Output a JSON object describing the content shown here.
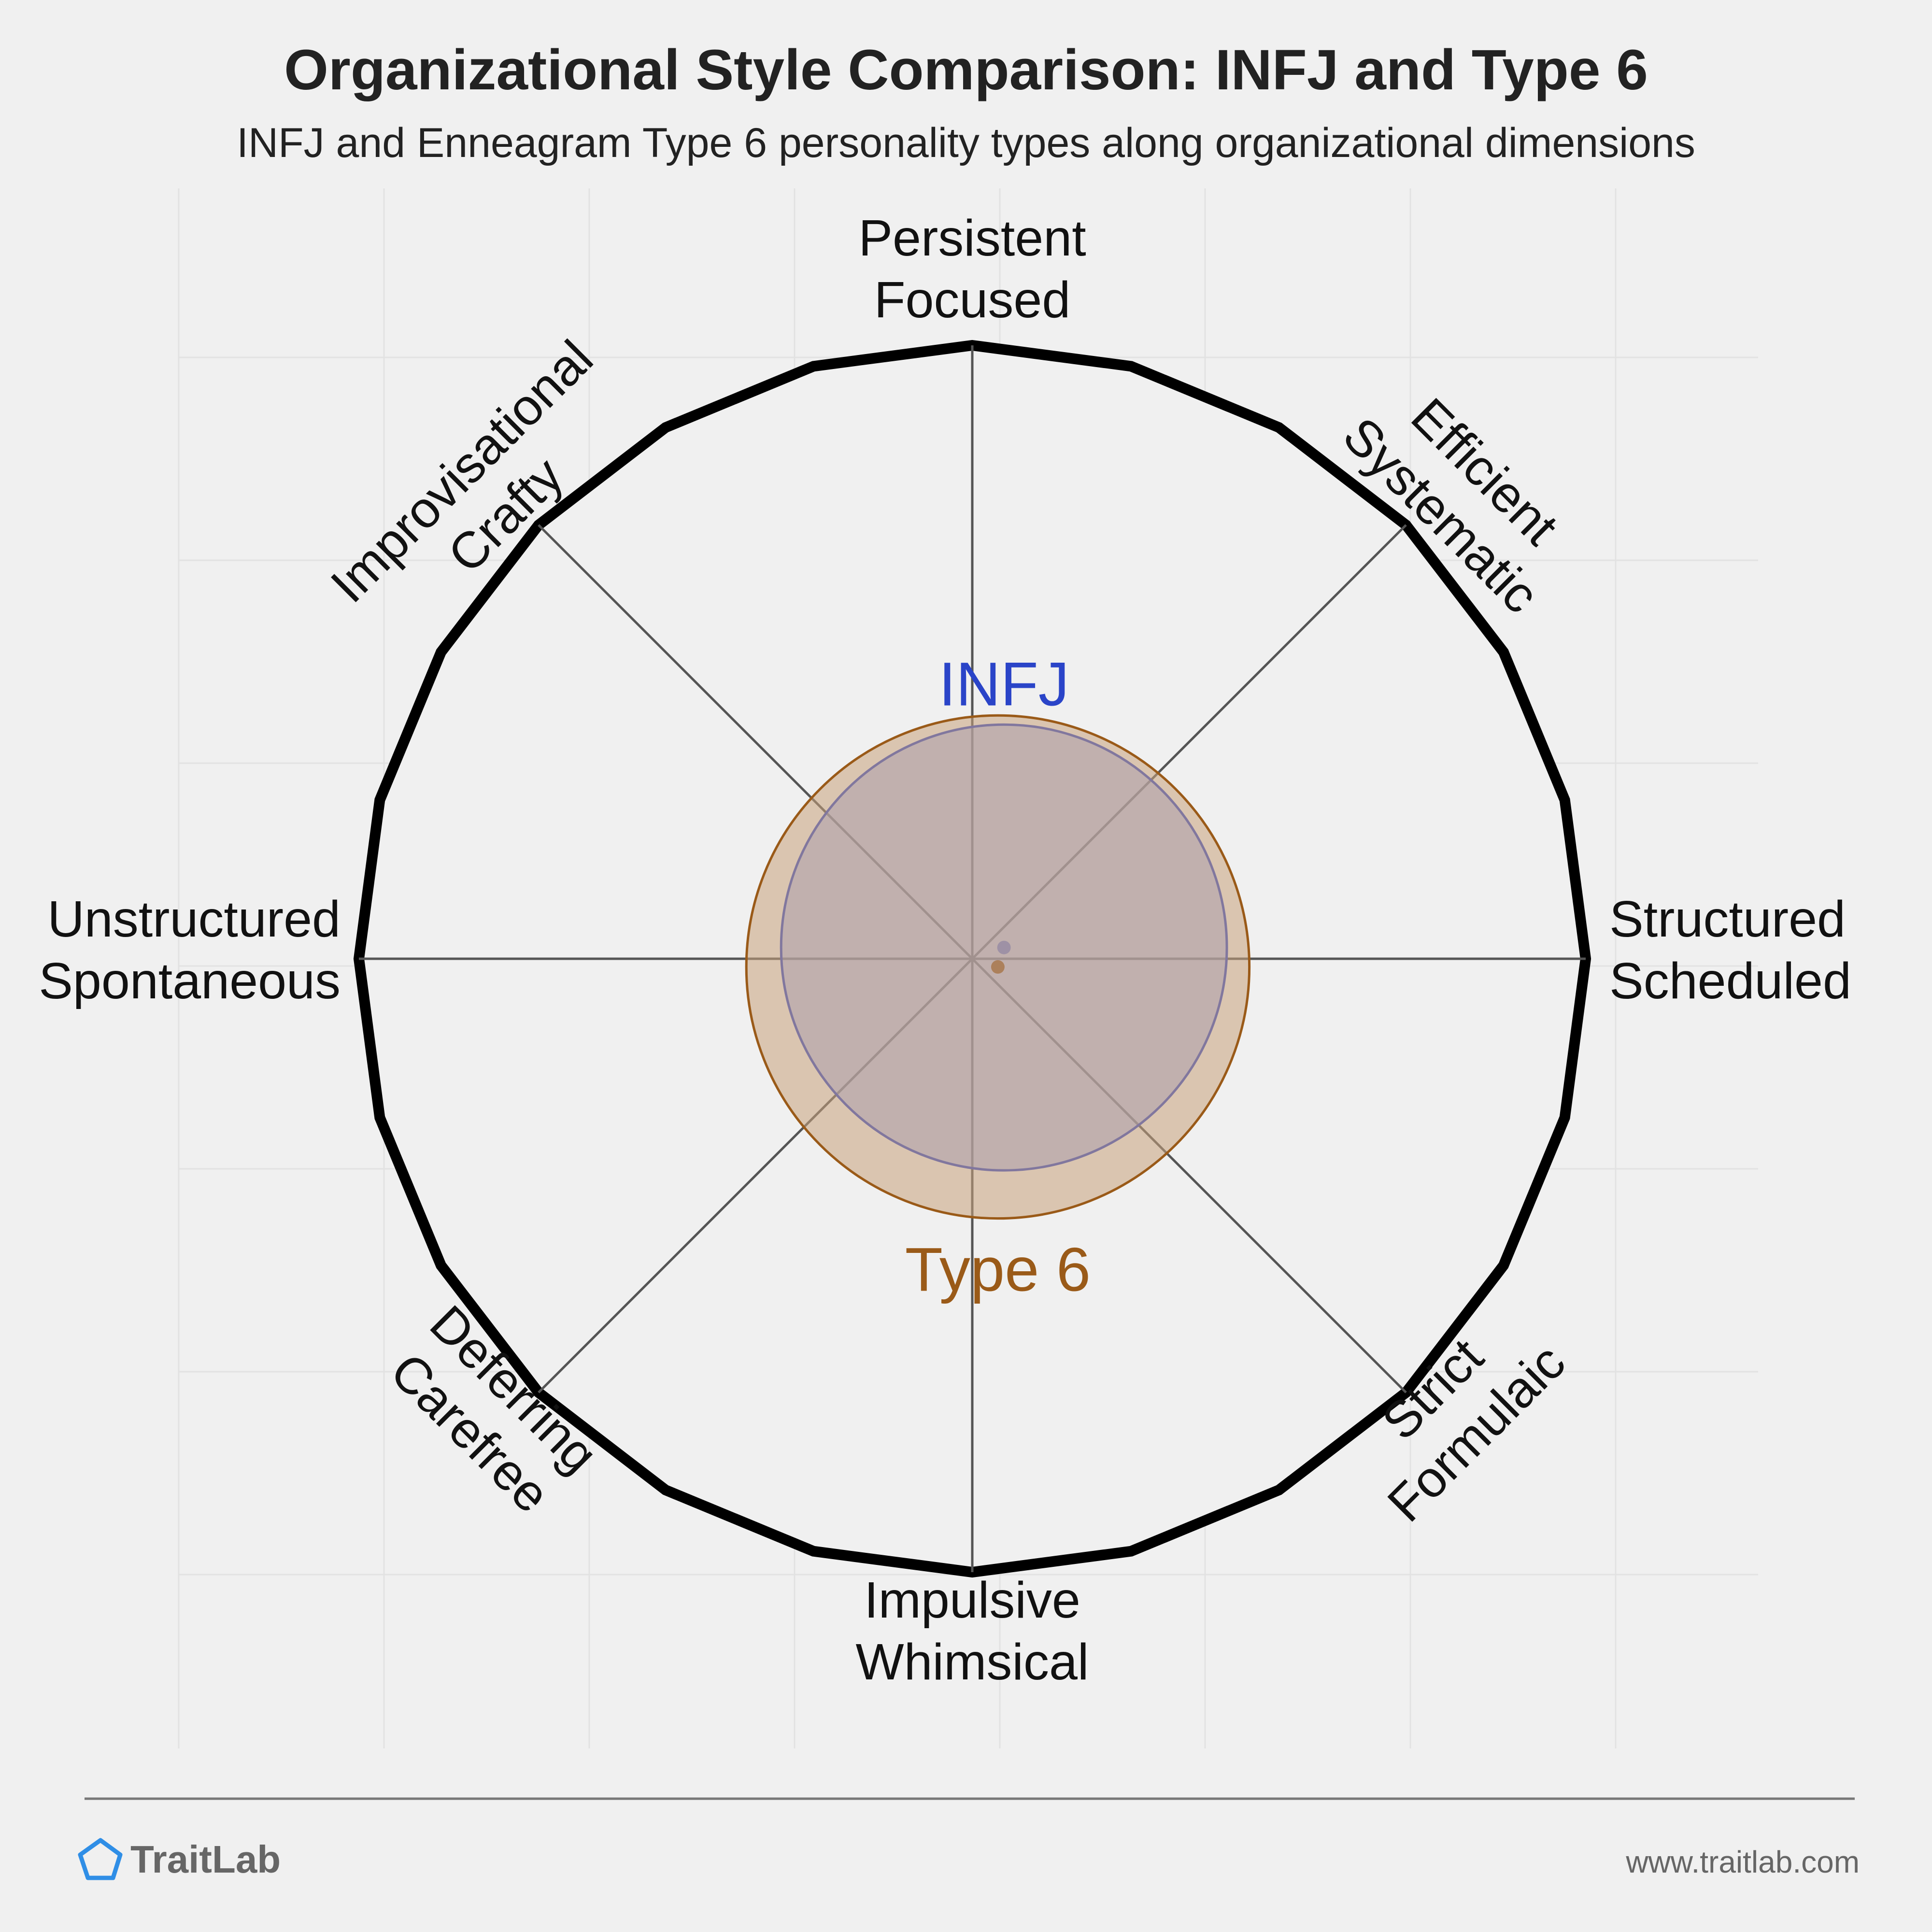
{
  "chart_data": {
    "type": "radar-circles",
    "title": "Organizational Style Comparison: INFJ and Type 6",
    "subtitle": "INFJ and Enneagram Type 6 personality types along organizational dimensions",
    "axes": [
      {
        "direction": "top",
        "lines": [
          "Persistent",
          "Focused"
        ]
      },
      {
        "direction": "top-right",
        "lines": [
          "Efficient",
          "Systematic"
        ]
      },
      {
        "direction": "right",
        "lines": [
          "Structured",
          "Scheduled"
        ]
      },
      {
        "direction": "bottom-right",
        "lines": [
          "Strict",
          "Formulaic"
        ]
      },
      {
        "direction": "bottom",
        "lines": [
          "Impulsive",
          "Whimsical"
        ]
      },
      {
        "direction": "bottom-left",
        "lines": [
          "Deferring",
          "Carefree"
        ]
      },
      {
        "direction": "left",
        "lines": [
          "Unstructured",
          "Spontaneous"
        ]
      },
      {
        "direction": "top-left",
        "lines": [
          "Improvisational",
          "Crafty"
        ]
      }
    ],
    "range": [
      0,
      6
    ],
    "rings": [
      1,
      2,
      3,
      4,
      5,
      6
    ],
    "series": [
      {
        "name": "INFJ",
        "x": 0.31,
        "y": 0.11,
        "spread": 2.18,
        "color": "#2a44c8",
        "fill": "#8a9de6"
      },
      {
        "name": "Type 6",
        "x": 0.25,
        "y": -0.08,
        "spread": 2.46,
        "color": "#9a5a18",
        "fill": "#c9a27c"
      }
    ]
  },
  "footer": {
    "brand": "TraitLab",
    "url": "www.traitlab.com",
    "brand_color": "#2f8ee6"
  }
}
